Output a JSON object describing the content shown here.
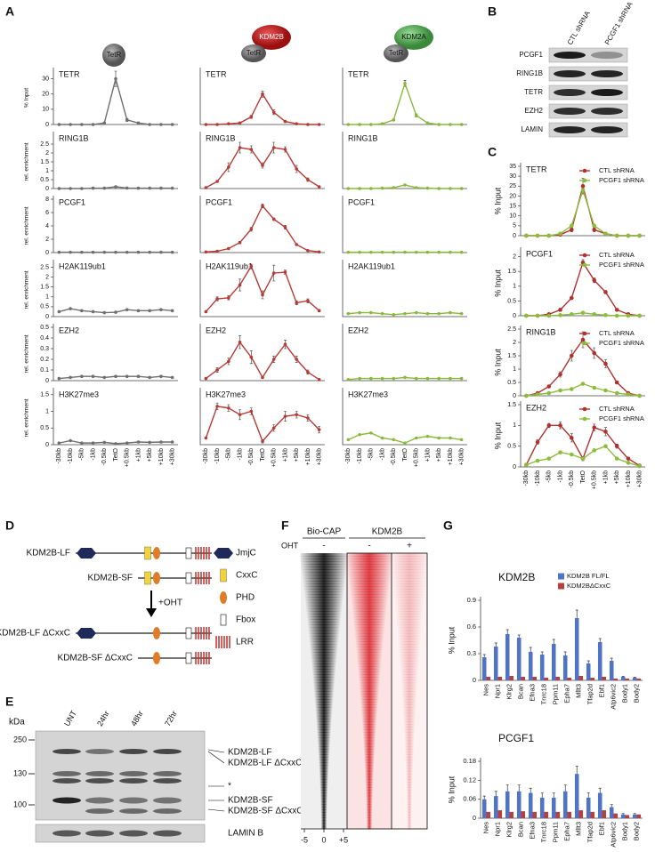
{
  "panel_labels": [
    "A",
    "B",
    "C",
    "D",
    "E",
    "F",
    "G"
  ],
  "icons": [
    [
      "TetR"
    ],
    [
      "KDM2B",
      "TetR"
    ],
    [
      "KDM2A",
      "TetR"
    ]
  ],
  "chart_data": [
    {
      "type": "line",
      "title": "TETR",
      "ylabel": "% Input",
      "ylim": [
        0,
        35
      ],
      "yticks": [
        0,
        10,
        20,
        30
      ],
      "series": [
        {
          "color": "#6f6f6f",
          "values": [
            0,
            0,
            0,
            0,
            1,
            30,
            3,
            1,
            0,
            0,
            0
          ],
          "errors": [
            0,
            0,
            0,
            0,
            0.5,
            5,
            1,
            0.5,
            0,
            0,
            0
          ]
        }
      ]
    },
    {
      "type": "line",
      "title": "RING1B",
      "ylabel": "rel. enrichment",
      "ylim": [
        0,
        3
      ],
      "yticks": [
        0,
        0.5,
        1,
        1.5,
        2,
        2.5
      ],
      "series": [
        {
          "color": "#6f6f6f",
          "values": [
            0,
            0,
            0,
            0.02,
            0.02,
            0.1,
            0.03,
            0.02,
            0.02,
            0.02,
            0.02
          ]
        }
      ]
    },
    {
      "type": "line",
      "title": "PCGF1",
      "ylabel": "rel. enrichment",
      "ylim": [
        0,
        8
      ],
      "yticks": [
        0,
        2,
        4,
        6,
        8
      ],
      "series": [
        {
          "color": "#6f6f6f",
          "values": [
            0.05,
            0.05,
            0.05,
            0.05,
            0.05,
            0.05,
            0.05,
            0.05,
            0.05,
            0.05,
            0.05
          ]
        }
      ]
    },
    {
      "type": "line",
      "title": "H2AK119ub1",
      "ylabel": "rel. enrichment",
      "ylim": [
        0,
        2.7
      ],
      "yticks": [
        0,
        0.5,
        1,
        1.5,
        2,
        2.5
      ],
      "series": [
        {
          "color": "#6f6f6f",
          "values": [
            0.25,
            0.4,
            0.3,
            0.25,
            0.2,
            0.22,
            0.35,
            0.3,
            0.3,
            0.35,
            0.3
          ]
        }
      ]
    },
    {
      "type": "line",
      "title": "EZH2",
      "ylabel": "rel. enrichment",
      "ylim": [
        0,
        0.5
      ],
      "yticks": [
        0,
        0.1,
        0.2,
        0.3,
        0.4,
        0.5
      ],
      "series": [
        {
          "color": "#6f6f6f",
          "values": [
            0.02,
            0.03,
            0.04,
            0.04,
            0.03,
            0.04,
            0.04,
            0.04,
            0.03,
            0.04,
            0.03
          ]
        }
      ]
    },
    {
      "type": "line",
      "title": "H3K27me3",
      "ylabel": "rel. enrichment",
      "ylim": [
        0,
        1.6
      ],
      "yticks": [
        0,
        0.5,
        1,
        1.5
      ],
      "categories": [
        "-30kb",
        "-10kb",
        "-5kb",
        "-1kb",
        "-0.5kb",
        "TetO",
        "+0.5kb",
        "+1kb",
        "+5kb",
        "+10kb",
        "+30kb"
      ],
      "series": [
        {
          "color": "#6f6f6f",
          "values": [
            0.05,
            0.12,
            0.05,
            0.05,
            0.07,
            0.03,
            0.05,
            0.08,
            0.07,
            0.08,
            0.08
          ]
        }
      ]
    },
    {
      "type": "line",
      "title": "TETR",
      "ylim": [
        0,
        35
      ],
      "series": [
        {
          "color": "#b83a35",
          "values": [
            0,
            0,
            0.5,
            1,
            5,
            20,
            8,
            2,
            0.5,
            0,
            0
          ],
          "errors": [
            0,
            0,
            0.2,
            0.3,
            1,
            2,
            1.5,
            0.5,
            0.2,
            0,
            0
          ]
        }
      ]
    },
    {
      "type": "line",
      "title": "RING1B",
      "ylim": [
        0,
        3
      ],
      "series": [
        {
          "color": "#b83a35",
          "values": [
            0.05,
            0.4,
            1.2,
            2.3,
            2.2,
            1.3,
            2.3,
            2.2,
            1.1,
            0.5,
            0.1
          ],
          "errors": [
            0,
            0.05,
            0.25,
            0.3,
            0.2,
            0.15,
            0.3,
            0.15,
            0.2,
            0.1,
            0
          ]
        }
      ]
    },
    {
      "type": "line",
      "title": "PCGF1",
      "ylim": [
        0,
        8
      ],
      "series": [
        {
          "color": "#b83a35",
          "values": [
            0.1,
            0.2,
            0.6,
            1.5,
            3.5,
            7,
            5,
            3.8,
            1.2,
            0.3,
            0.1
          ],
          "errors": [
            0,
            0,
            0.1,
            0.2,
            0.3,
            0.3,
            0.2,
            0.3,
            0.1,
            0.05,
            0
          ]
        }
      ]
    },
    {
      "type": "line",
      "title": "H2AK119ub1",
      "ylim": [
        0,
        2.7
      ],
      "series": [
        {
          "color": "#b83a35",
          "values": [
            0.25,
            0.9,
            0.95,
            1.6,
            2.55,
            1.1,
            2.2,
            2.25,
            0.7,
            0.8,
            0.3
          ],
          "errors": [
            0,
            0.1,
            0.1,
            0.3,
            0.1,
            0.2,
            0.4,
            0.1,
            0.1,
            0.1,
            0.05
          ]
        }
      ]
    },
    {
      "type": "line",
      "title": "EZH2",
      "ylim": [
        0,
        0.5
      ],
      "series": [
        {
          "color": "#b83a35",
          "values": [
            0.02,
            0.1,
            0.18,
            0.36,
            0.22,
            0.03,
            0.2,
            0.34,
            0.2,
            0.08,
            0.01
          ],
          "errors": [
            0,
            0.02,
            0.03,
            0.06,
            0.06,
            0.01,
            0.03,
            0.04,
            0.03,
            0.02,
            0
          ]
        }
      ]
    },
    {
      "type": "line",
      "title": "H3K27me3",
      "ylim": [
        0,
        1.6
      ],
      "categories": [
        "-30kb",
        "-10kb",
        "-5kb",
        "-1kb",
        "-0.5kb",
        "TetO",
        "+0.5kb",
        "+1kb",
        "+5kb",
        "+10kb",
        "+30kb"
      ],
      "series": [
        {
          "color": "#b83a35",
          "values": [
            0.2,
            1.15,
            1.1,
            0.9,
            1.0,
            0.1,
            0.5,
            0.85,
            0.9,
            0.8,
            0.45
          ],
          "errors": [
            0,
            0.1,
            0.1,
            0.15,
            0.1,
            0.05,
            0.1,
            0.15,
            0.1,
            0.1,
            0.1
          ]
        }
      ]
    },
    {
      "type": "line",
      "title": "TETR",
      "ylim": [
        0,
        35
      ],
      "series": [
        {
          "color": "#8ab83a",
          "values": [
            0,
            0,
            0,
            0.5,
            3,
            27,
            6,
            1,
            0,
            0,
            0
          ],
          "errors": [
            0,
            0,
            0,
            0.2,
            0.5,
            2,
            1,
            0.3,
            0,
            0,
            0
          ]
        }
      ]
    },
    {
      "type": "line",
      "title": "RING1B",
      "ylim": [
        0,
        3
      ],
      "series": [
        {
          "color": "#8ab83a",
          "values": [
            0,
            0,
            0,
            0.02,
            0.05,
            0.2,
            0.05,
            0.02,
            0,
            0,
            0
          ]
        }
      ]
    },
    {
      "type": "line",
      "title": "PCGF1",
      "ylim": [
        0,
        8
      ],
      "series": [
        {
          "color": "#8ab83a",
          "values": [
            0.05,
            0.05,
            0.05,
            0.05,
            0.05,
            0.06,
            0.05,
            0.05,
            0.05,
            0.05,
            0.05
          ]
        }
      ]
    },
    {
      "type": "line",
      "title": "H2AK119ub1",
      "ylim": [
        0,
        2.7
      ],
      "series": [
        {
          "color": "#8ab83a",
          "values": [
            0.15,
            0.2,
            0.2,
            0.15,
            0.1,
            0.15,
            0.2,
            0.15,
            0.15,
            0.2,
            0.15
          ]
        }
      ]
    },
    {
      "type": "line",
      "title": "EZH2",
      "ylim": [
        0,
        0.5
      ],
      "series": [
        {
          "color": "#8ab83a",
          "values": [
            0.01,
            0.02,
            0.02,
            0.02,
            0.02,
            0.03,
            0.02,
            0.02,
            0.02,
            0.02,
            0.02
          ]
        }
      ]
    },
    {
      "type": "line",
      "title": "H3K27me3",
      "ylim": [
        0,
        1.6
      ],
      "categories": [
        "-30kb",
        "-10kb",
        "-5kb",
        "-1kb",
        "-0.5kb",
        "TetO",
        "+0.5kb",
        "+1kb",
        "+5kb",
        "+10kb",
        "+30kb"
      ],
      "series": [
        {
          "color": "#8ab83a",
          "values": [
            0.15,
            0.3,
            0.35,
            0.2,
            0.15,
            0.05,
            0.2,
            0.25,
            0.2,
            0.2,
            0.15
          ]
        }
      ]
    },
    {
      "type": "line",
      "title": "TETR",
      "ylabel": "% Input",
      "ylim": [
        0,
        35
      ],
      "yticks": [
        0,
        5,
        10,
        15,
        20,
        25,
        30,
        35
      ],
      "legend": "top-right",
      "series": [
        {
          "name": "CTL shRNA",
          "color": "#b2312e",
          "values": [
            0,
            0,
            0,
            0.5,
            3,
            25,
            3,
            1,
            0,
            0,
            0
          ],
          "errors": [
            0,
            0,
            0,
            0.3,
            1,
            4,
            1,
            0.5,
            0,
            0,
            0
          ]
        },
        {
          "name": "PCGF1 shRNA",
          "color": "#8cbc3c",
          "values": [
            0,
            0,
            0,
            1,
            5,
            23,
            5,
            1,
            0,
            0,
            0
          ]
        }
      ]
    },
    {
      "type": "line",
      "title": "PCGF1",
      "ylabel": "% Input",
      "ylim": [
        0,
        2.2
      ],
      "yticks": [
        0,
        0.5,
        1,
        1.5,
        2
      ],
      "legend": "top-right",
      "series": [
        {
          "name": "CTL shRNA",
          "color": "#b2312e",
          "values": [
            0,
            0,
            0.05,
            0.2,
            0.6,
            1.8,
            1.2,
            0.8,
            0.2,
            0.05,
            0
          ],
          "errors": [
            0,
            0,
            0.02,
            0.05,
            0.05,
            0.1,
            0.08,
            0.05,
            0.03,
            0,
            0
          ]
        },
        {
          "name": "PCGF1 shRNA",
          "color": "#8cbc3c",
          "values": [
            0,
            0,
            0,
            0.02,
            0.05,
            0.1,
            0.05,
            0.02,
            0,
            0,
            0
          ]
        }
      ]
    },
    {
      "type": "line",
      "title": "RING1B",
      "ylabel": "% Input",
      "ylim": [
        0,
        2.5
      ],
      "yticks": [
        0,
        0.5,
        1,
        1.5,
        2,
        2.5
      ],
      "legend": "top-right",
      "series": [
        {
          "name": "CTL shRNA",
          "color": "#b2312e",
          "values": [
            0,
            0.1,
            0.35,
            0.8,
            1.5,
            2.1,
            1.6,
            1.2,
            0.5,
            0.1,
            0
          ],
          "errors": [
            0,
            0.02,
            0.05,
            0.1,
            0.2,
            0.3,
            0.2,
            0.15,
            0.05,
            0.02,
            0
          ]
        },
        {
          "name": "PCGF1 shRNA",
          "color": "#8cbc3c",
          "values": [
            0,
            0.05,
            0.1,
            0.2,
            0.25,
            0.45,
            0.3,
            0.2,
            0.1,
            0.05,
            0
          ]
        }
      ]
    },
    {
      "type": "line",
      "title": "EZH2",
      "ylabel": "% Input",
      "ylim": [
        0,
        1.5
      ],
      "yticks": [
        0,
        0.5,
        1,
        1.5
      ],
      "legend": "top-right",
      "categories": [
        "-30kb",
        "-10kb",
        "-5kb",
        "-1kb",
        "-0.5kb",
        "TetO",
        "+0.5kb",
        "+1kb",
        "+5kb",
        "+10kb",
        "+30kb"
      ],
      "series": [
        {
          "name": "CTL shRNA",
          "color": "#b2312e",
          "values": [
            0.05,
            0.6,
            1.0,
            1.0,
            0.7,
            0.2,
            0.95,
            0.85,
            0.5,
            0.2,
            0.03
          ],
          "errors": [
            0,
            0.05,
            0.05,
            0.08,
            0.1,
            0.05,
            0.08,
            0.1,
            0.05,
            0.03,
            0
          ]
        },
        {
          "name": "PCGF1 shRNA",
          "color": "#8cbc3c",
          "values": [
            0.05,
            0.15,
            0.2,
            0.35,
            0.3,
            0.2,
            0.4,
            0.5,
            0.2,
            0.1,
            0.02
          ]
        }
      ]
    },
    {
      "type": "bar",
      "title": "KDM2B",
      "ylabel": "% Input",
      "ylim": [
        0,
        0.9
      ],
      "yticks": [
        0,
        0.3,
        0.6,
        0.9
      ],
      "legend": "top-right",
      "categories": [
        "Nes",
        "Npr1",
        "Klrg2",
        "Bcan",
        "Efna3",
        "Tnrc18",
        "Ppm11",
        "Epha7",
        "Mllt3",
        "Tfap2d",
        "Ebf1",
        "Atp6vic2",
        "Body1",
        "Body2"
      ],
      "series": [
        {
          "name": "KDM2B FL/FL",
          "color": "#4f73c7",
          "values": [
            0.26,
            0.38,
            0.52,
            0.48,
            0.32,
            0.29,
            0.41,
            0.28,
            0.7,
            0.19,
            0.43,
            0.22,
            0.04,
            0.03
          ],
          "errors": [
            0.03,
            0.04,
            0.05,
            0.03,
            0.05,
            0.03,
            0.05,
            0.04,
            0.09,
            0.03,
            0.04,
            0.03,
            0.005,
            0.005
          ]
        },
        {
          "name": "KDM2BΔCxxC",
          "color": "#b5403f",
          "values": [
            0.04,
            0.04,
            0.05,
            0.04,
            0.04,
            0.03,
            0.04,
            0.03,
            0.05,
            0.03,
            0.04,
            0.02,
            0.02,
            0.02
          ]
        }
      ]
    },
    {
      "type": "bar",
      "title": "PCGF1",
      "ylabel": "% Input",
      "ylim": [
        0,
        0.18
      ],
      "yticks": [
        0,
        0.06,
        0.12,
        0.18
      ],
      "categories": [
        "Nes",
        "Npr1",
        "Klrg2",
        "Bcan",
        "Efna3",
        "Tnrc18",
        "Ppm11",
        "Epha7",
        "Mllt3",
        "Tfap2d",
        "Ebf1",
        "Atp6vic2",
        "Body1",
        "Body2"
      ],
      "series": [
        {
          "color": "#4f73c7",
          "values": [
            0.06,
            0.07,
            0.085,
            0.085,
            0.08,
            0.065,
            0.065,
            0.085,
            0.14,
            0.065,
            0.08,
            0.035,
            0.012,
            0.012
          ],
          "errors": [
            0.01,
            0.015,
            0.02,
            0.02,
            0.015,
            0.015,
            0.015,
            0.02,
            0.025,
            0.015,
            0.015,
            0.008,
            0.003,
            0.003
          ]
        },
        {
          "color": "#b5403f",
          "values": [
            0.02,
            0.025,
            0.02,
            0.022,
            0.02,
            0.02,
            0.02,
            0.02,
            0.025,
            0.02,
            0.025,
            0.015,
            0.01,
            0.012
          ]
        }
      ]
    }
  ],
  "blot_b": {
    "lanes": [
      "CTL shRNA",
      "PCGF1 shRNA"
    ],
    "rows": [
      "PCGF1",
      "RING1B",
      "TETR",
      "EZH2",
      "LAMIN"
    ]
  },
  "diagram_d": {
    "constructs": [
      "KDM2B-LF",
      "KDM2B-SF",
      "KDM2B-LF ΔCxxC",
      "KDM2B-SF ΔCxxC"
    ],
    "arrow": "+OHT",
    "legend": [
      "JmjC",
      "CxxC",
      "PHD",
      "Fbox",
      "LRR"
    ]
  },
  "blot_e": {
    "unit": "kDa",
    "lanes": [
      "UNT",
      "24hr",
      "48hr",
      "72hr"
    ],
    "markers": [
      250,
      130,
      100
    ],
    "bands": [
      "KDM2B-LF",
      "KDM2B-LF ΔCxxC",
      "*",
      "KDM2B-SF",
      "KDM2B-SF ΔCxxC"
    ],
    "loading": "LAMIN B"
  },
  "heatmap_f": {
    "groups": [
      "Bio-CAP",
      "KDM2B"
    ],
    "treatment": "OHT",
    "conditions": [
      "-",
      "-",
      "+"
    ],
    "xticks": [
      -5,
      0,
      {
        "value": 5,
        "label": "+5"
      }
    ]
  }
}
